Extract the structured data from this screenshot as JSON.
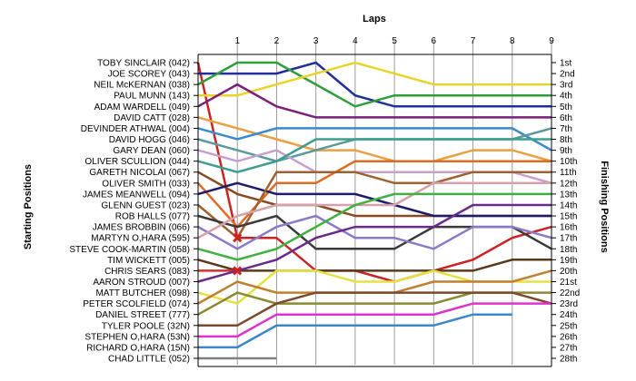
{
  "chart_data": {
    "type": "line",
    "title": "Laps",
    "ylabel_left": "Starting Positions",
    "ylabel_right": "Finishing Positions",
    "laps": [
      "1",
      "2",
      "3",
      "4",
      "5",
      "6",
      "7",
      "8",
      "9"
    ],
    "x_start": 0,
    "x_max": 9,
    "position_count": 28,
    "starting_grid": [
      "TOBY SINCLAIR (042)",
      "JOE SCOREY (043)",
      "NEIL McKERNAN (038)",
      "PAUL MUNN (143)",
      "ADAM WARDELL (049)",
      "DAVID CATT (028)",
      "DEVINDER ATHWAL (004)",
      "DAVID HOGG (046)",
      "GARY DEAN (060)",
      "OLIVER SCULLION (044)",
      "GARETH NICOLAI (067)",
      "OLIVER SMITH (033)",
      "JAMES MEANWELL (094)",
      "GLENN GUEST (023)",
      "ROB HALLS (077)",
      "JAMES BROBBIN (066)",
      "MARTYN O,HARA (595)",
      "STEVE COOK-MARTIN (058)",
      "TIM WICKETT (005)",
      "CHRIS SEARS (083)",
      "AARON STROUD (007)",
      "MATT BUTCHER (098)",
      "PETER SCOLFIELD (074)",
      "DANIEL STREET (777)",
      "TYLER POOLE (32N)",
      "STEPHEN O,HARA (53N)",
      "RICHARD O,HARA (15N)",
      "CHAD LITTLE (052)"
    ],
    "finishing_labels": [
      "1st",
      "2nd",
      "3rd",
      "4th",
      "5th",
      "6th",
      "7th",
      "8th",
      "9th",
      "10th",
      "11th",
      "12th",
      "13th",
      "14th",
      "15th",
      "16th",
      "17th",
      "18th",
      "19th",
      "20th",
      "21st",
      "22nd",
      "23rd",
      "24th",
      "25th",
      "26th",
      "27th",
      "28th"
    ],
    "series": [
      {
        "color": "#cc2222",
        "positions": [
          1,
          17,
          17,
          20,
          20,
          21,
          20,
          19,
          17,
          16
        ],
        "retired_at": 1
      },
      {
        "color": "#1f2fa0",
        "positions": [
          2,
          2,
          2,
          1,
          4,
          5,
          5,
          5,
          5,
          5
        ]
      },
      {
        "color": "#2e9e3a",
        "positions": [
          3,
          1,
          1,
          3,
          5,
          4,
          4,
          4,
          4,
          4
        ]
      },
      {
        "color": "#e8d42a",
        "positions": [
          4,
          4,
          3,
          2,
          1,
          2,
          3,
          3,
          3,
          3
        ]
      },
      {
        "color": "#7a1f7a",
        "positions": [
          5,
          3,
          5,
          6,
          6,
          6,
          6,
          6,
          6,
          6
        ]
      },
      {
        "color": "#e8a040",
        "positions": [
          6,
          7,
          8,
          9,
          9,
          10,
          10,
          9,
          9,
          10
        ]
      },
      {
        "color": "#3a8ad0",
        "positions": [
          7,
          8,
          7,
          7,
          7,
          7,
          7,
          7,
          7,
          9
        ]
      },
      {
        "color": "#5a9a9a",
        "positions": [
          8,
          9,
          10,
          9,
          8,
          8,
          8,
          8,
          8,
          7
        ]
      },
      {
        "color": "#c8a0d0",
        "positions": [
          9,
          10,
          9,
          11,
          11,
          11,
          11,
          11,
          11,
          12
        ]
      },
      {
        "color": "#3c9e8e",
        "positions": [
          10,
          11,
          10,
          8,
          8,
          8,
          8,
          8,
          8,
          8
        ]
      },
      {
        "color": "#8a4a20",
        "positions": [
          11,
          13,
          14,
          14,
          15,
          15,
          15,
          15,
          15,
          15
        ]
      },
      {
        "color": "#e06a20",
        "positions": [
          12,
          16,
          12,
          12,
          10,
          10,
          10,
          10,
          10,
          10
        ]
      },
      {
        "color": "#1c1c6a",
        "positions": [
          13,
          12,
          13,
          13,
          13,
          14,
          15,
          15,
          15,
          15
        ]
      },
      {
        "color": "#a06030",
        "positions": [
          14,
          17,
          11,
          11,
          11,
          12,
          12,
          11,
          11,
          11
        ]
      },
      {
        "color": "#3a3a3a",
        "positions": [
          15,
          16,
          15,
          18,
          18,
          18,
          16,
          16,
          16,
          18
        ]
      },
      {
        "color": "#8c7ac8",
        "positions": [
          16,
          18,
          16,
          15,
          17,
          17,
          18,
          16,
          16,
          17
        ]
      },
      {
        "color": "#d8a0a8",
        "positions": [
          17,
          15,
          14,
          14,
          14,
          14,
          12,
          12,
          12,
          12
        ]
      },
      {
        "color": "#40b040",
        "positions": [
          18,
          19,
          18,
          16,
          14,
          13,
          13,
          13,
          13,
          13
        ]
      },
      {
        "color": "#5a3a1a",
        "positions": [
          19,
          20,
          20,
          20,
          20,
          20,
          20,
          20,
          19,
          19
        ]
      },
      {
        "color": "#d43030",
        "positions": [
          20,
          20
        ],
        "retired_at": 1
      },
      {
        "color": "#6a2a8a",
        "positions": [
          21,
          20,
          19,
          17,
          16,
          16,
          16,
          14,
          14,
          14
        ]
      },
      {
        "color": "#e8e040",
        "positions": [
          22,
          23,
          20,
          20,
          21,
          21,
          20,
          21,
          21,
          21
        ]
      },
      {
        "color": "#c08030",
        "positions": [
          23,
          21,
          22,
          22,
          22,
          22,
          21,
          21,
          21,
          20
        ]
      },
      {
        "color": "#8a8a30",
        "positions": [
          24,
          22,
          23,
          23,
          23,
          23,
          23,
          22,
          22,
          22
        ]
      },
      {
        "color": "#7a4a2a",
        "positions": [
          25,
          25,
          23,
          22,
          22,
          22,
          22,
          22,
          22,
          23
        ]
      },
      {
        "color": "#e030d0",
        "positions": [
          26,
          26,
          24,
          24,
          24,
          24,
          24,
          23,
          23,
          23
        ]
      },
      {
        "color": "#3a88cc",
        "positions": [
          27,
          27,
          25,
          25,
          25,
          25,
          25,
          24,
          24
        ]
      },
      {
        "color": "#808080",
        "positions": [
          28,
          28,
          28
        ]
      }
    ]
  }
}
